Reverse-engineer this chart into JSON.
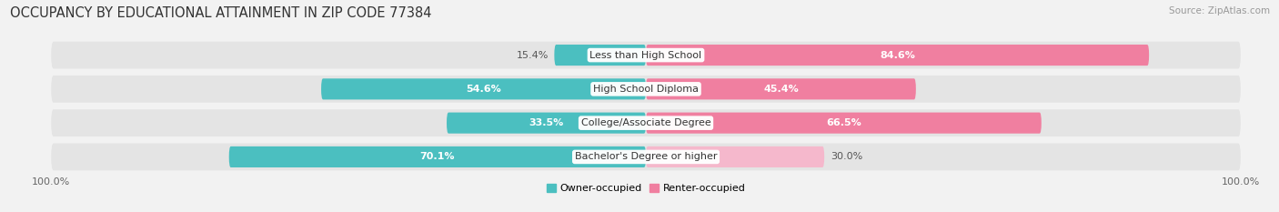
{
  "title": "OCCUPANCY BY EDUCATIONAL ATTAINMENT IN ZIP CODE 77384",
  "source": "Source: ZipAtlas.com",
  "categories": [
    "Less than High School",
    "High School Diploma",
    "College/Associate Degree",
    "Bachelor's Degree or higher"
  ],
  "owner_pct": [
    15.4,
    54.6,
    33.5,
    70.1
  ],
  "renter_pct": [
    84.6,
    45.4,
    66.5,
    30.0
  ],
  "owner_color": "#4bbfc0",
  "renter_color": "#f07fa0",
  "renter_color_light": "#f5b8cc",
  "bg_color": "#f2f2f2",
  "bar_bg_color": "#e8e8e8",
  "row_bg_color": "#e4e4e4",
  "bar_height": 0.62,
  "title_fontsize": 10.5,
  "source_fontsize": 7.5,
  "label_fontsize": 8,
  "tick_fontsize": 8,
  "legend_fontsize": 8
}
